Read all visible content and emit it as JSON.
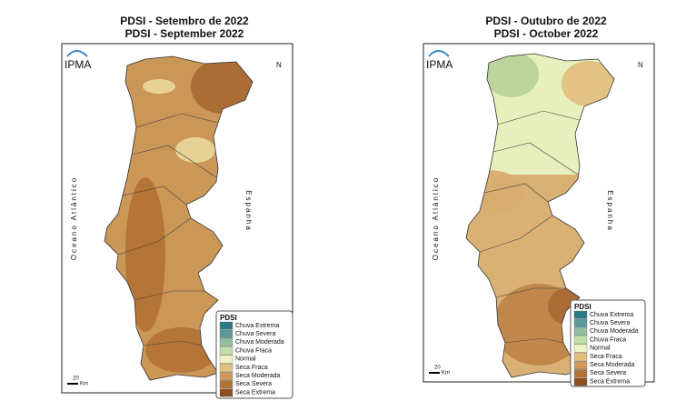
{
  "panels": [
    {
      "title": "PDSI - Setembro de 2022",
      "subtitle": "PDSI - September 2022",
      "logo": "IPMA",
      "ocean_label": "Oceano Atlântico",
      "land_label": "Espanha",
      "north": "N",
      "scale": "20",
      "scale_unit": "Km",
      "legend": {
        "title": "PDSI",
        "items": [
          {
            "label": "Chuva Extrema",
            "color": "#2d7a86"
          },
          {
            "label": "Chuva Severa",
            "color": "#5b9a9a"
          },
          {
            "label": "Chuva Moderada",
            "color": "#8fbf9c"
          },
          {
            "label": "Chuva Fraca",
            "color": "#c1dea8"
          },
          {
            "label": "Normal",
            "color": "#eef2c2"
          },
          {
            "label": "Seca Fraca",
            "color": "#e2c07f"
          },
          {
            "label": "Seca Moderada",
            "color": "#cf9a57"
          },
          {
            "label": "Seca Severa",
            "color": "#b27336"
          },
          {
            "label": "Seca Extrema",
            "color": "#8f4e1e"
          }
        ]
      }
    },
    {
      "title": "PDSI - Outubro de 2022",
      "subtitle": "PDSI - October 2022",
      "logo": "IPMA",
      "ocean_label": "Oceano Atlântico",
      "land_label": "Espanha",
      "north": "N",
      "scale": "20",
      "scale_unit": "Km",
      "legend": {
        "title": "PDSI",
        "items": [
          {
            "label": "Chuva Extrema",
            "color": "#2d7a86"
          },
          {
            "label": "Chuva Severa",
            "color": "#5b9a9a"
          },
          {
            "label": "Chuva Moderada",
            "color": "#8fbf9c"
          },
          {
            "label": "Chuva Fraca",
            "color": "#c1dea8"
          },
          {
            "label": "Normal",
            "color": "#eef2c2"
          },
          {
            "label": "Seca Fraca",
            "color": "#e2c07f"
          },
          {
            "label": "Seca Moderada",
            "color": "#cf9a57"
          },
          {
            "label": "Seca Severa",
            "color": "#b27336"
          },
          {
            "label": "Seca Extrema",
            "color": "#8f4e1e"
          }
        ]
      }
    }
  ]
}
